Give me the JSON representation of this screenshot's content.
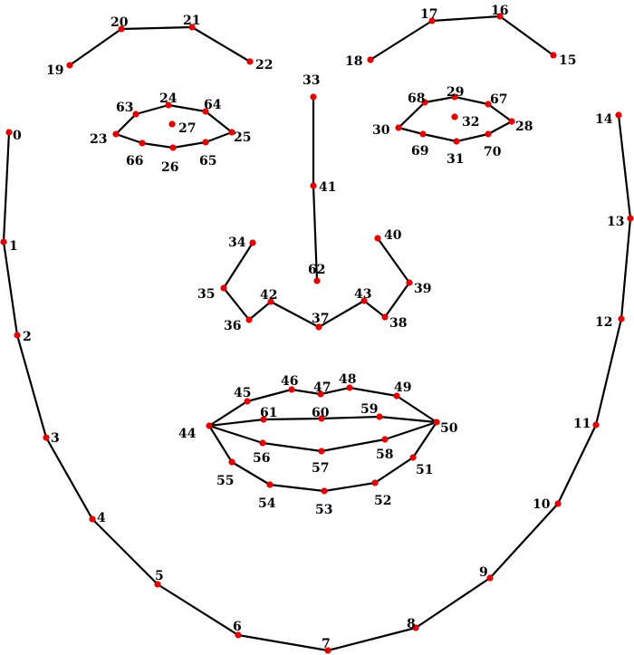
{
  "colors": {
    "line": "#000000",
    "point": "#e00000",
    "background": "#ffffff"
  },
  "landmarks": [
    {
      "id": "0",
      "label": "0"
    },
    {
      "id": "1",
      "label": "1"
    },
    {
      "id": "2",
      "label": "2"
    },
    {
      "id": "3",
      "label": "3"
    },
    {
      "id": "4",
      "label": "4"
    },
    {
      "id": "5",
      "label": "5"
    },
    {
      "id": "6",
      "label": "6"
    },
    {
      "id": "7",
      "label": "7"
    },
    {
      "id": "8",
      "label": "8"
    },
    {
      "id": "9",
      "label": "9"
    },
    {
      "id": "10",
      "label": "10"
    },
    {
      "id": "11",
      "label": "11"
    },
    {
      "id": "12",
      "label": "12"
    },
    {
      "id": "13",
      "label": "13"
    },
    {
      "id": "14",
      "label": "14"
    },
    {
      "id": "15",
      "label": "15"
    },
    {
      "id": "16",
      "label": "16"
    },
    {
      "id": "17",
      "label": "17"
    },
    {
      "id": "18",
      "label": "18"
    },
    {
      "id": "19",
      "label": "19"
    },
    {
      "id": "20",
      "label": "20"
    },
    {
      "id": "21",
      "label": "21"
    },
    {
      "id": "22",
      "label": "22"
    },
    {
      "id": "23",
      "label": "23"
    },
    {
      "id": "24",
      "label": "24"
    },
    {
      "id": "25",
      "label": "25"
    },
    {
      "id": "26",
      "label": "26"
    },
    {
      "id": "27",
      "label": "27"
    },
    {
      "id": "28",
      "label": "28"
    },
    {
      "id": "29",
      "label": "29"
    },
    {
      "id": "30",
      "label": "30"
    },
    {
      "id": "31",
      "label": "31"
    },
    {
      "id": "32",
      "label": "32"
    },
    {
      "id": "33",
      "label": "33"
    },
    {
      "id": "34",
      "label": "34"
    },
    {
      "id": "35",
      "label": "35"
    },
    {
      "id": "36",
      "label": "36"
    },
    {
      "id": "37",
      "label": "37"
    },
    {
      "id": "38",
      "label": "38"
    },
    {
      "id": "39",
      "label": "39"
    },
    {
      "id": "40",
      "label": "40"
    },
    {
      "id": "41",
      "label": "41"
    },
    {
      "id": "42",
      "label": "42"
    },
    {
      "id": "43",
      "label": "43"
    },
    {
      "id": "44",
      "label": "44"
    },
    {
      "id": "45",
      "label": "45"
    },
    {
      "id": "46",
      "label": "46"
    },
    {
      "id": "47",
      "label": "47"
    },
    {
      "id": "48",
      "label": "48"
    },
    {
      "id": "49",
      "label": "49"
    },
    {
      "id": "50",
      "label": "50"
    },
    {
      "id": "51",
      "label": "51"
    },
    {
      "id": "52",
      "label": "52"
    },
    {
      "id": "53",
      "label": "53"
    },
    {
      "id": "54",
      "label": "54"
    },
    {
      "id": "55",
      "label": "55"
    },
    {
      "id": "56",
      "label": "56"
    },
    {
      "id": "57",
      "label": "57"
    },
    {
      "id": "58",
      "label": "58"
    },
    {
      "id": "59",
      "label": "59"
    },
    {
      "id": "60",
      "label": "60"
    },
    {
      "id": "61",
      "label": "61"
    },
    {
      "id": "62",
      "label": "62"
    },
    {
      "id": "63",
      "label": "63"
    },
    {
      "id": "64",
      "label": "64"
    },
    {
      "id": "65",
      "label": "65"
    },
    {
      "id": "66",
      "label": "66"
    },
    {
      "id": "67",
      "label": "67"
    },
    {
      "id": "68",
      "label": "68"
    },
    {
      "id": "69",
      "label": "69"
    },
    {
      "id": "70",
      "label": "70"
    }
  ],
  "connections": [
    [
      "0",
      "1"
    ],
    [
      "1",
      "2"
    ],
    [
      "2",
      "3"
    ],
    [
      "3",
      "4"
    ],
    [
      "4",
      "5"
    ],
    [
      "5",
      "6"
    ],
    [
      "6",
      "7"
    ],
    [
      "7",
      "8"
    ],
    [
      "8",
      "9"
    ],
    [
      "9",
      "10"
    ],
    [
      "10",
      "11"
    ],
    [
      "11",
      "12"
    ],
    [
      "12",
      "13"
    ],
    [
      "13",
      "14"
    ],
    [
      "19",
      "20"
    ],
    [
      "20",
      "21"
    ],
    [
      "21",
      "22"
    ],
    [
      "18",
      "17"
    ],
    [
      "17",
      "16"
    ],
    [
      "16",
      "15"
    ],
    [
      "23",
      "63"
    ],
    [
      "63",
      "24"
    ],
    [
      "24",
      "64"
    ],
    [
      "64",
      "25"
    ],
    [
      "25",
      "65"
    ],
    [
      "65",
      "26"
    ],
    [
      "26",
      "66"
    ],
    [
      "66",
      "23"
    ],
    [
      "30",
      "68"
    ],
    [
      "68",
      "29"
    ],
    [
      "29",
      "67"
    ],
    [
      "67",
      "28"
    ],
    [
      "28",
      "70"
    ],
    [
      "70",
      "31"
    ],
    [
      "31",
      "69"
    ],
    [
      "69",
      "30"
    ],
    [
      "33",
      "41"
    ],
    [
      "41",
      "62"
    ],
    [
      "34",
      "35"
    ],
    [
      "35",
      "36"
    ],
    [
      "36",
      "42"
    ],
    [
      "42",
      "37"
    ],
    [
      "37",
      "43"
    ],
    [
      "43",
      "38"
    ],
    [
      "38",
      "39"
    ],
    [
      "39",
      "40"
    ],
    [
      "44",
      "45"
    ],
    [
      "45",
      "46"
    ],
    [
      "46",
      "47"
    ],
    [
      "47",
      "48"
    ],
    [
      "48",
      "49"
    ],
    [
      "49",
      "50"
    ],
    [
      "50",
      "51"
    ],
    [
      "51",
      "52"
    ],
    [
      "52",
      "53"
    ],
    [
      "53",
      "54"
    ],
    [
      "54",
      "55"
    ],
    [
      "55",
      "44"
    ],
    [
      "44",
      "61"
    ],
    [
      "61",
      "60"
    ],
    [
      "60",
      "59"
    ],
    [
      "59",
      "50"
    ],
    [
      "44",
      "56"
    ],
    [
      "56",
      "57"
    ],
    [
      "57",
      "58"
    ],
    [
      "58",
      "50"
    ]
  ]
}
